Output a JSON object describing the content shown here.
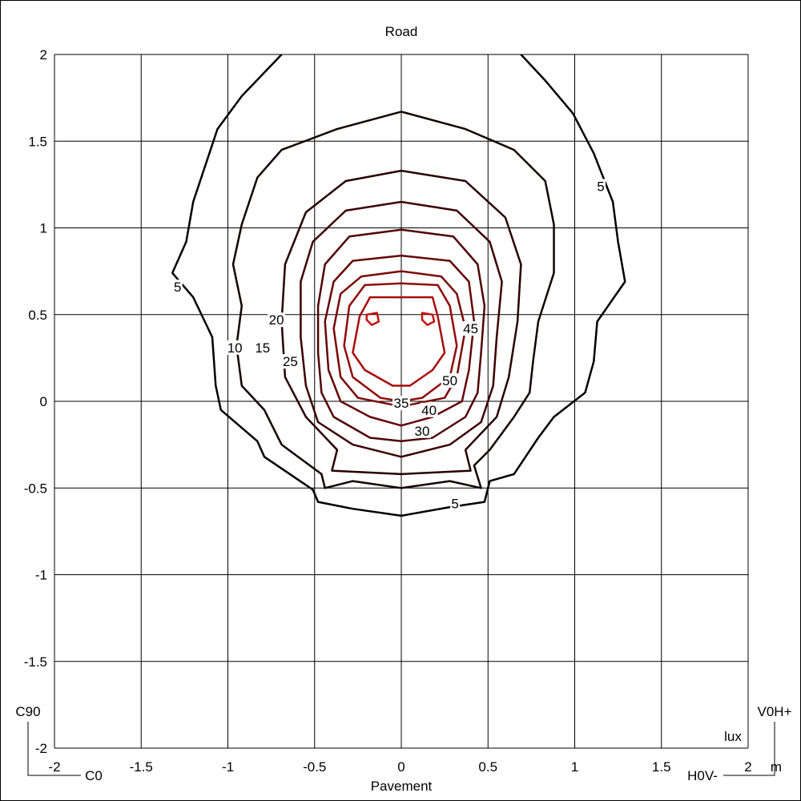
{
  "chart_data": {
    "type": "contour",
    "title": "Road",
    "xlabel": "Pavement",
    "x_unit": "m",
    "value_unit": "lux",
    "corner_labels": {
      "bottom_left_vertical": "C90",
      "bottom_left_horizontal": "C0",
      "bottom_right_vertical": "V0H+",
      "bottom_right_horizontal": "H0V-"
    },
    "xlim": [
      -2,
      2
    ],
    "ylim": [
      -2,
      2
    ],
    "x_ticks": [
      "-2",
      "-1.5",
      "-1",
      "-0.5",
      "0",
      "0.5",
      "1",
      "1.5",
      "2"
    ],
    "y_ticks": [
      "2",
      "1.5",
      "1",
      "0.5",
      "0",
      "-0.5",
      "-1",
      "-1.5",
      "-2"
    ],
    "grid": true,
    "level_colors": {
      "5": "#000000",
      "10": "#140000",
      "15": "#280000",
      "20": "#3c0000",
      "25": "#500404",
      "30": "#640606",
      "35": "#7a0808",
      "40": "#900a0a",
      "45": "#a80c0c",
      "50": "#c81010"
    },
    "contours": [
      {
        "level": 5,
        "points": [
          [
            -0.69,
            2.0
          ],
          [
            -0.55,
            2.12
          ],
          [
            0,
            2.17
          ],
          [
            0.55,
            2.12
          ],
          [
            0.69,
            2.0
          ],
          [
            0.83,
            1.85
          ],
          [
            0.99,
            1.66
          ],
          [
            1.11,
            1.43
          ],
          [
            1.22,
            1.15
          ],
          [
            1.25,
            0.92
          ],
          [
            1.29,
            0.69
          ],
          [
            1.13,
            0.46
          ],
          [
            1.11,
            0.23
          ],
          [
            1.06,
            0.05
          ],
          [
            0.88,
            -0.09
          ],
          [
            0.79,
            -0.21
          ],
          [
            0.65,
            -0.42
          ],
          [
            0.51,
            -0.46
          ],
          [
            0.48,
            -0.58
          ],
          [
            0.28,
            -0.61
          ],
          [
            0,
            -0.66
          ],
          [
            -0.28,
            -0.62
          ],
          [
            -0.48,
            -0.58
          ],
          [
            -0.51,
            -0.51
          ],
          [
            -0.79,
            -0.32
          ],
          [
            -0.83,
            -0.23
          ],
          [
            -1.04,
            -0.05
          ],
          [
            -1.07,
            0.09
          ],
          [
            -1.09,
            0.37
          ],
          [
            -1.2,
            0.6
          ],
          [
            -1.32,
            0.74
          ],
          [
            -1.24,
            0.92
          ],
          [
            -1.2,
            1.15
          ],
          [
            -1.06,
            1.57
          ],
          [
            -0.92,
            1.76
          ]
        ]
      },
      {
        "level": 10,
        "points": [
          [
            -0.69,
            1.45
          ],
          [
            -0.37,
            1.57
          ],
          [
            0,
            1.67
          ],
          [
            0.37,
            1.57
          ],
          [
            0.65,
            1.45
          ],
          [
            0.83,
            1.27
          ],
          [
            0.88,
            1.02
          ],
          [
            0.88,
            0.74
          ],
          [
            0.79,
            0.46
          ],
          [
            0.76,
            0.23
          ],
          [
            0.74,
            0.05
          ],
          [
            0.65,
            -0.09
          ],
          [
            0.51,
            -0.28
          ],
          [
            0.42,
            -0.37
          ],
          [
            0.46,
            -0.5
          ],
          [
            0.28,
            -0.46
          ],
          [
            0,
            -0.5
          ],
          [
            -0.28,
            -0.46
          ],
          [
            -0.44,
            -0.5
          ],
          [
            -0.46,
            -0.42
          ],
          [
            -0.69,
            -0.25
          ],
          [
            -0.79,
            -0.05
          ],
          [
            -0.92,
            0.09
          ],
          [
            -0.95,
            0.32
          ],
          [
            -0.92,
            0.55
          ],
          [
            -0.97,
            0.79
          ],
          [
            -0.92,
            1.02
          ],
          [
            -0.83,
            1.29
          ]
        ]
      },
      {
        "level": 15,
        "points": [
          [
            0,
            1.33
          ],
          [
            0.37,
            1.27
          ],
          [
            0.6,
            1.06
          ],
          [
            0.69,
            0.79
          ],
          [
            0.67,
            0.46
          ],
          [
            0.62,
            0.14
          ],
          [
            0.55,
            -0.09
          ],
          [
            0.37,
            -0.28
          ],
          [
            0.4,
            -0.4
          ],
          [
            0,
            -0.42
          ],
          [
            -0.4,
            -0.4
          ],
          [
            -0.37,
            -0.28
          ],
          [
            -0.55,
            -0.09
          ],
          [
            -0.67,
            0.14
          ],
          [
            -0.69,
            0.46
          ],
          [
            -0.67,
            0.79
          ],
          [
            -0.55,
            1.09
          ],
          [
            -0.32,
            1.27
          ]
        ]
      },
      {
        "level": 20,
        "points": [
          [
            0,
            1.15
          ],
          [
            0.32,
            1.1
          ],
          [
            0.51,
            0.92
          ],
          [
            0.58,
            0.69
          ],
          [
            0.55,
            0.37
          ],
          [
            0.53,
            0.09
          ],
          [
            0.46,
            -0.12
          ],
          [
            0.28,
            -0.25
          ],
          [
            0,
            -0.32
          ],
          [
            -0.28,
            -0.25
          ],
          [
            -0.48,
            -0.12
          ],
          [
            -0.55,
            0.09
          ],
          [
            -0.58,
            0.37
          ],
          [
            -0.58,
            0.69
          ],
          [
            -0.51,
            0.92
          ],
          [
            -0.32,
            1.1
          ]
        ]
      },
      {
        "level": 25,
        "points": [
          [
            0,
            0.99
          ],
          [
            0.3,
            0.95
          ],
          [
            0.44,
            0.79
          ],
          [
            0.48,
            0.55
          ],
          [
            0.46,
            0.28
          ],
          [
            0.44,
            0.05
          ],
          [
            0.37,
            -0.09
          ],
          [
            0.18,
            -0.21
          ],
          [
            0,
            -0.23
          ],
          [
            -0.18,
            -0.21
          ],
          [
            -0.39,
            -0.09
          ],
          [
            -0.46,
            0.05
          ],
          [
            -0.48,
            0.28
          ],
          [
            -0.48,
            0.55
          ],
          [
            -0.44,
            0.79
          ],
          [
            -0.3,
            0.95
          ]
        ]
      },
      {
        "level": 30,
        "points": [
          [
            0,
            0.84
          ],
          [
            0.28,
            0.81
          ],
          [
            0.39,
            0.69
          ],
          [
            0.42,
            0.46
          ],
          [
            0.39,
            0.18
          ],
          [
            0.35,
            0
          ],
          [
            0.18,
            -0.09
          ],
          [
            0,
            -0.14
          ],
          [
            -0.18,
            -0.09
          ],
          [
            -0.35,
            0
          ],
          [
            -0.42,
            0.18
          ],
          [
            -0.44,
            0.46
          ],
          [
            -0.39,
            0.69
          ],
          [
            -0.28,
            0.81
          ]
        ]
      },
      {
        "level": 35,
        "points": [
          [
            0,
            0.75
          ],
          [
            0.23,
            0.72
          ],
          [
            0.32,
            0.62
          ],
          [
            0.37,
            0.42
          ],
          [
            0.32,
            0.14
          ],
          [
            0.25,
            0.02
          ],
          [
            0.05,
            -0.02
          ],
          [
            -0.05,
            -0.02
          ],
          [
            -0.25,
            0.02
          ],
          [
            -0.35,
            0.14
          ],
          [
            -0.39,
            0.42
          ],
          [
            -0.35,
            0.62
          ],
          [
            -0.23,
            0.72
          ]
        ]
      },
      {
        "level": 40,
        "points": [
          [
            0,
            0.68
          ],
          [
            0.21,
            0.67
          ],
          [
            0.28,
            0.55
          ],
          [
            0.32,
            0.32
          ],
          [
            0.28,
            0.14
          ],
          [
            0.12,
            0.02
          ],
          [
            0,
            0
          ],
          [
            -0.12,
            0.02
          ],
          [
            -0.28,
            0.14
          ],
          [
            -0.33,
            0.32
          ],
          [
            -0.3,
            0.55
          ],
          [
            -0.21,
            0.67
          ]
        ]
      },
      {
        "level": 45,
        "points": [
          [
            0,
            0.6
          ],
          [
            0.18,
            0.6
          ],
          [
            0.21,
            0.49
          ],
          [
            0.25,
            0.28
          ],
          [
            0.18,
            0.18
          ],
          [
            0.05,
            0.09
          ],
          [
            -0.05,
            0.09
          ],
          [
            -0.21,
            0.18
          ],
          [
            -0.28,
            0.28
          ],
          [
            -0.24,
            0.49
          ],
          [
            -0.18,
            0.6
          ]
        ]
      },
      {
        "level": 50,
        "points": [
          [
            -0.2,
            0.5
          ],
          [
            -0.14,
            0.51
          ],
          [
            -0.13,
            0.46
          ],
          [
            -0.17,
            0.44
          ],
          [
            -0.2,
            0.47
          ]
        ]
      },
      {
        "level": 50,
        "points": [
          [
            0.12,
            0.51
          ],
          [
            0.18,
            0.5
          ],
          [
            0.19,
            0.46
          ],
          [
            0.15,
            0.44
          ],
          [
            0.12,
            0.47
          ]
        ]
      }
    ],
    "contour_labels": [
      {
        "text": "5",
        "x": -1.29,
        "y": 0.66
      },
      {
        "text": "5",
        "x": 1.15,
        "y": 1.24
      },
      {
        "text": "5",
        "x": 0.31,
        "y": -0.59
      },
      {
        "text": "10",
        "x": -0.96,
        "y": 0.31
      },
      {
        "text": "15",
        "x": -0.8,
        "y": 0.31
      },
      {
        "text": "20",
        "x": -0.72,
        "y": 0.47
      },
      {
        "text": "25",
        "x": -0.64,
        "y": 0.23
      },
      {
        "text": "45",
        "x": 0.4,
        "y": 0.42
      },
      {
        "text": "50",
        "x": 0.28,
        "y": 0.12
      },
      {
        "text": "40",
        "x": 0.16,
        "y": -0.05
      },
      {
        "text": "30",
        "x": 0.12,
        "y": -0.17
      },
      {
        "text": "35",
        "x": 0.0,
        "y": -0.01
      }
    ]
  }
}
